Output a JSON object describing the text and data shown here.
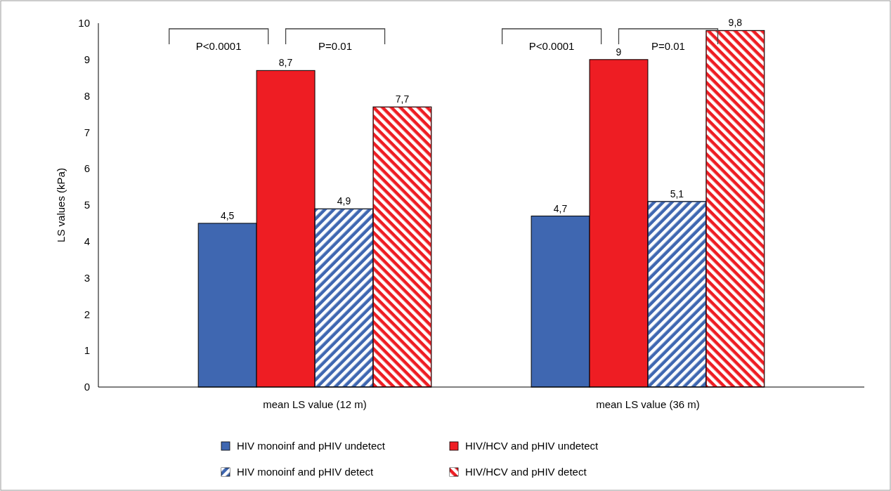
{
  "chart_data": {
    "type": "bar",
    "ylabel": "LS values (kPa)",
    "categories": [
      "mean LS value (12 m)",
      "mean LS value (36 m)"
    ],
    "series": [
      {
        "name": "HIV monoinf and pHIV undetect",
        "color": "#3f67b1",
        "values": [
          4.5,
          4.7
        ],
        "value_labels": [
          "4,5",
          "4,7"
        ]
      },
      {
        "name": "HIV/HCV and pHIV undetect",
        "color": "#ee1d23",
        "values": [
          8.7,
          9
        ],
        "value_labels": [
          "8,7",
          "9"
        ]
      },
      {
        "name": "HIV monoinf and pHIV detect",
        "color": "#3f67b1",
        "values": [
          4.9,
          5.1
        ],
        "value_labels": [
          "4,9",
          "5,1"
        ]
      },
      {
        "name": "HIV/HCV and pHIV detect",
        "color": "#ee1d23",
        "values": [
          7.7,
          9.8
        ],
        "value_labels": [
          "7,7",
          "9,8"
        ]
      }
    ],
    "ylim": [
      0,
      10
    ],
    "yticks": [
      0,
      1,
      2,
      3,
      4,
      5,
      6,
      7,
      8,
      9,
      10
    ],
    "grid": false,
    "legend": "bottom",
    "annotations": [
      "P<0.0001",
      "P=0.01",
      "P<0.0001",
      "P=0.01"
    ]
  }
}
